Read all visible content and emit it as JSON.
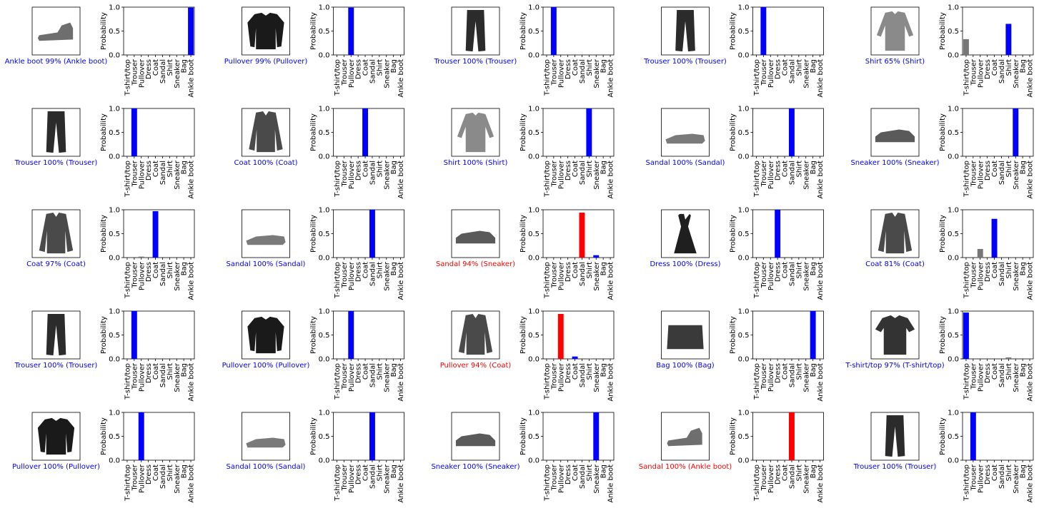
{
  "figure": {
    "class_names": [
      "T-shirt/top",
      "Trouser",
      "Pullover",
      "Dress",
      "Coat",
      "Sandal",
      "Shirt",
      "Sneaker",
      "Bag",
      "Ankle boot"
    ],
    "colors": {
      "predicted_wrong": "#ff0000",
      "true_label": "#0000ff",
      "other": "#777777",
      "correct_caption": "#0000ff",
      "wrong_caption": "#ff0000"
    },
    "ylabel": "Probability",
    "yticks": [
      "0.0",
      "0.5",
      "1.0"
    ]
  },
  "chart_data": [
    {
      "type": "bar",
      "caption": "Ankle boot 99% (Ankle boot)",
      "predicted": 9,
      "true": 9,
      "thumbnail": "ankle-boot",
      "ylim": [
        0,
        1
      ],
      "values": [
        0,
        0,
        0,
        0,
        0,
        0,
        0,
        0.01,
        0,
        0.99
      ]
    },
    {
      "type": "bar",
      "caption": "Pullover 99% (Pullover)",
      "predicted": 2,
      "true": 2,
      "thumbnail": "pullover",
      "ylim": [
        0,
        1
      ],
      "values": [
        0,
        0,
        0.99,
        0,
        0.01,
        0,
        0,
        0,
        0,
        0
      ]
    },
    {
      "type": "bar",
      "caption": "Trouser 100% (Trouser)",
      "predicted": 1,
      "true": 1,
      "thumbnail": "trouser",
      "ylim": [
        0,
        1
      ],
      "values": [
        0,
        1,
        0,
        0,
        0,
        0,
        0,
        0,
        0,
        0
      ]
    },
    {
      "type": "bar",
      "caption": "Trouser 100% (Trouser)",
      "predicted": 1,
      "true": 1,
      "thumbnail": "trouser",
      "ylim": [
        0,
        1
      ],
      "values": [
        0,
        1,
        0,
        0,
        0,
        0,
        0,
        0,
        0,
        0
      ]
    },
    {
      "type": "bar",
      "caption": "Shirt 65% (Shirt)",
      "predicted": 6,
      "true": 6,
      "thumbnail": "shirt",
      "ylim": [
        0,
        1
      ],
      "values": [
        0.33,
        0,
        0,
        0,
        0,
        0,
        0.65,
        0,
        0,
        0
      ]
    },
    {
      "type": "bar",
      "caption": "Trouser 100% (Trouser)",
      "predicted": 1,
      "true": 1,
      "thumbnail": "trouser",
      "ylim": [
        0,
        1
      ],
      "values": [
        0,
        1,
        0,
        0,
        0,
        0,
        0,
        0,
        0,
        0
      ]
    },
    {
      "type": "bar",
      "caption": "Coat 100% (Coat)",
      "predicted": 4,
      "true": 4,
      "thumbnail": "coat",
      "ylim": [
        0,
        1
      ],
      "values": [
        0,
        0,
        0,
        0,
        1,
        0,
        0,
        0,
        0,
        0
      ]
    },
    {
      "type": "bar",
      "caption": "Shirt 100% (Shirt)",
      "predicted": 6,
      "true": 6,
      "thumbnail": "shirt",
      "ylim": [
        0,
        1
      ],
      "values": [
        0,
        0,
        0,
        0,
        0,
        0,
        1,
        0,
        0,
        0
      ]
    },
    {
      "type": "bar",
      "caption": "Sandal 100% (Sandal)",
      "predicted": 5,
      "true": 5,
      "thumbnail": "sandal",
      "ylim": [
        0,
        1
      ],
      "values": [
        0,
        0,
        0,
        0,
        0,
        1,
        0,
        0,
        0,
        0
      ]
    },
    {
      "type": "bar",
      "caption": "Sneaker 100% (Sneaker)",
      "predicted": 7,
      "true": 7,
      "thumbnail": "sneaker",
      "ylim": [
        0,
        1
      ],
      "values": [
        0,
        0,
        0,
        0,
        0,
        0,
        0,
        1,
        0,
        0
      ]
    },
    {
      "type": "bar",
      "caption": "Coat 97% (Coat)",
      "predicted": 4,
      "true": 4,
      "thumbnail": "coat",
      "ylim": [
        0,
        1
      ],
      "values": [
        0,
        0,
        0.02,
        0,
        0.97,
        0,
        0,
        0,
        0,
        0
      ]
    },
    {
      "type": "bar",
      "caption": "Sandal 100% (Sandal)",
      "predicted": 5,
      "true": 5,
      "thumbnail": "sandal",
      "ylim": [
        0,
        1
      ],
      "values": [
        0,
        0,
        0,
        0,
        0,
        1,
        0,
        0,
        0,
        0
      ]
    },
    {
      "type": "bar",
      "caption": "Sandal 94% (Sneaker)",
      "predicted": 5,
      "true": 7,
      "thumbnail": "sneaker",
      "ylim": [
        0,
        1
      ],
      "values": [
        0,
        0,
        0,
        0,
        0,
        0.94,
        0,
        0.05,
        0.01,
        0
      ]
    },
    {
      "type": "bar",
      "caption": "Dress 100% (Dress)",
      "predicted": 3,
      "true": 3,
      "thumbnail": "dress",
      "ylim": [
        0,
        1
      ],
      "values": [
        0,
        0,
        0,
        1,
        0,
        0,
        0,
        0,
        0,
        0
      ]
    },
    {
      "type": "bar",
      "caption": "Coat 81% (Coat)",
      "predicted": 4,
      "true": 4,
      "thumbnail": "coat",
      "ylim": [
        0,
        1
      ],
      "values": [
        0,
        0,
        0.18,
        0,
        0.81,
        0,
        0,
        0,
        0,
        0
      ]
    },
    {
      "type": "bar",
      "caption": "Trouser 100% (Trouser)",
      "predicted": 1,
      "true": 1,
      "thumbnail": "trouser",
      "ylim": [
        0,
        1
      ],
      "values": [
        0,
        1,
        0,
        0,
        0,
        0,
        0,
        0,
        0,
        0
      ]
    },
    {
      "type": "bar",
      "caption": "Pullover 100% (Pullover)",
      "predicted": 2,
      "true": 2,
      "thumbnail": "pullover",
      "ylim": [
        0,
        1
      ],
      "values": [
        0,
        0,
        1,
        0,
        0,
        0,
        0,
        0,
        0,
        0
      ]
    },
    {
      "type": "bar",
      "caption": "Pullover 94% (Coat)",
      "predicted": 2,
      "true": 4,
      "thumbnail": "coat",
      "ylim": [
        0,
        1
      ],
      "values": [
        0,
        0,
        0.94,
        0,
        0.05,
        0,
        0.01,
        0,
        0,
        0
      ]
    },
    {
      "type": "bar",
      "caption": "Bag 100% (Bag)",
      "predicted": 8,
      "true": 8,
      "thumbnail": "bag",
      "ylim": [
        0,
        1
      ],
      "values": [
        0,
        0,
        0,
        0,
        0,
        0,
        0,
        0,
        1,
        0
      ]
    },
    {
      "type": "bar",
      "caption": "T-shirt/top 97% (T-shirt/top)",
      "predicted": 0,
      "true": 0,
      "thumbnail": "tshirt",
      "ylim": [
        0,
        1
      ],
      "values": [
        0.97,
        0,
        0,
        0,
        0,
        0,
        0.03,
        0,
        0,
        0
      ]
    },
    {
      "type": "bar",
      "caption": "Pullover 100% (Pullover)",
      "predicted": 2,
      "true": 2,
      "thumbnail": "pullover",
      "ylim": [
        0,
        1
      ],
      "values": [
        0,
        0,
        1,
        0,
        0,
        0,
        0,
        0,
        0,
        0
      ]
    },
    {
      "type": "bar",
      "caption": "Sandal 100% (Sandal)",
      "predicted": 5,
      "true": 5,
      "thumbnail": "sandal",
      "ylim": [
        0,
        1
      ],
      "values": [
        0,
        0,
        0,
        0,
        0,
        1,
        0,
        0.01,
        0,
        0
      ]
    },
    {
      "type": "bar",
      "caption": "Sneaker 100% (Sneaker)",
      "predicted": 7,
      "true": 7,
      "thumbnail": "sneaker",
      "ylim": [
        0,
        1
      ],
      "values": [
        0,
        0,
        0,
        0,
        0,
        0,
        0,
        1,
        0,
        0
      ]
    },
    {
      "type": "bar",
      "caption": "Sandal 100% (Ankle boot)",
      "predicted": 5,
      "true": 9,
      "thumbnail": "ankle-boot",
      "ylim": [
        0,
        1
      ],
      "values": [
        0,
        0,
        0,
        0,
        0,
        1,
        0,
        0,
        0,
        0
      ]
    },
    {
      "type": "bar",
      "caption": "Trouser 100% (Trouser)",
      "predicted": 1,
      "true": 1,
      "thumbnail": "trouser",
      "ylim": [
        0,
        1
      ],
      "values": [
        0,
        1,
        0,
        0,
        0,
        0,
        0,
        0,
        0,
        0
      ]
    }
  ]
}
